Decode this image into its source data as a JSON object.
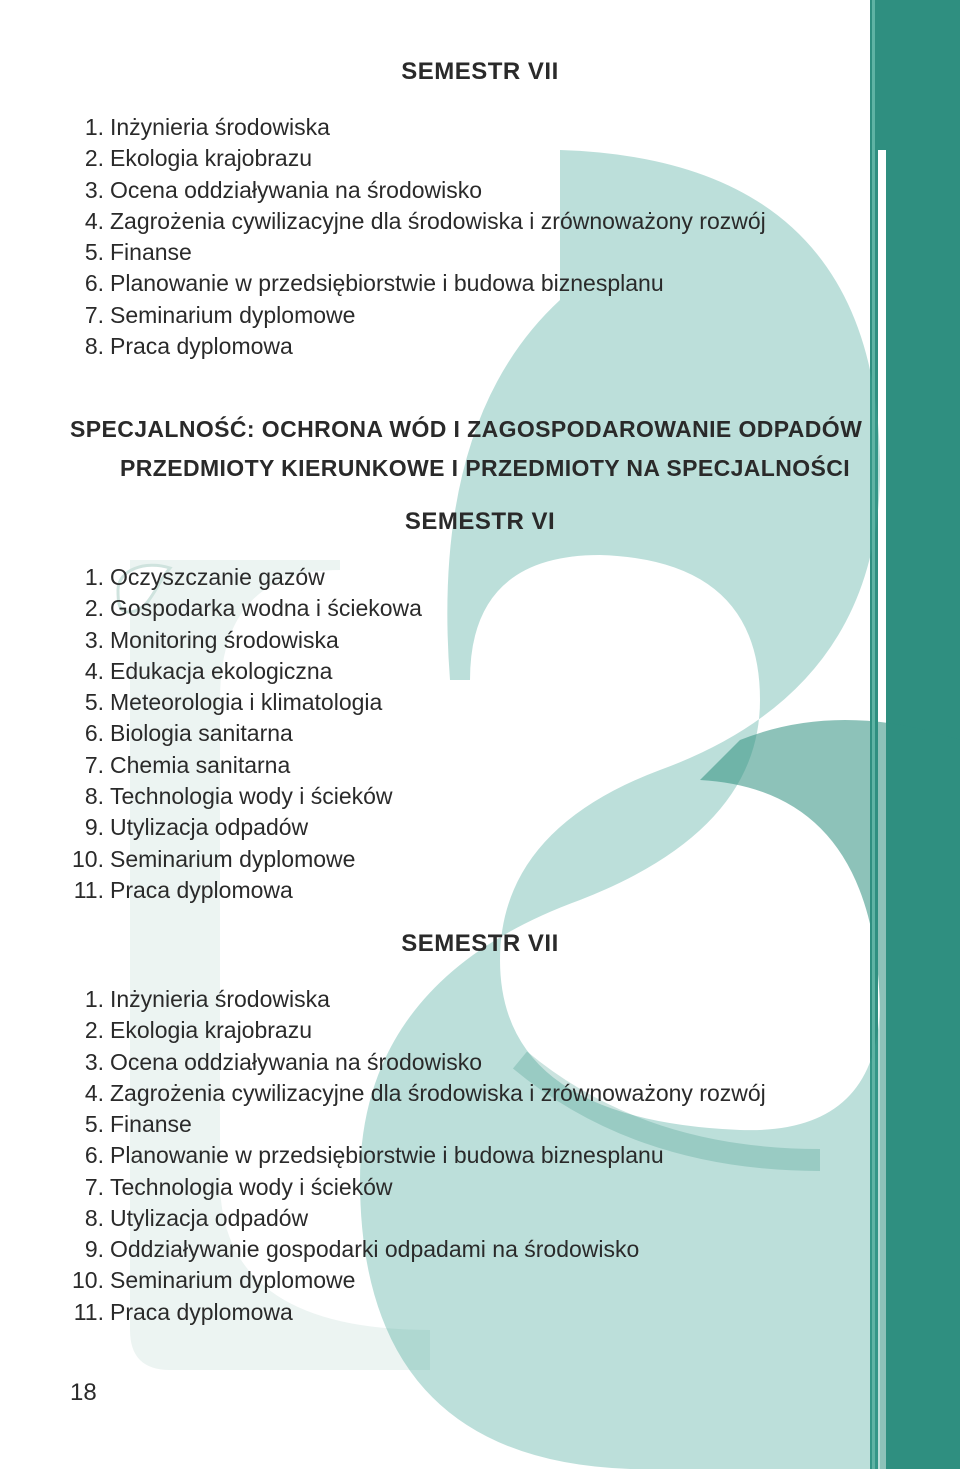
{
  "colors": {
    "text": "#2a2a2a",
    "background": "#ffffff",
    "teal_dark": "#2f8f80",
    "teal_light": "#d9ece8",
    "teal_mid": "#3fa394",
    "accent_line": "#bcd9d3"
  },
  "pageNumber": "18",
  "sections": [
    {
      "type": "heading_center",
      "text": "SEMESTR VII"
    },
    {
      "type": "list",
      "items": [
        "Inżynieria środowiska",
        "Ekologia krajobrazu",
        "Ocena oddziaływania na środowisko",
        "Zagrożenia cywilizacyjne dla środowiska i zrównoważony rozwój",
        "Finanse",
        "Planowanie w przedsiębiorstwie i budowa biznesplanu",
        "Seminarium dyplomowe",
        "Praca dyplomowa"
      ]
    },
    {
      "type": "heading_left",
      "text": "SPECJALNOŚĆ: OCHRONA WÓD I ZAGOSPODAROWANIE ODPADÓW"
    },
    {
      "type": "heading_indent",
      "text": "PRZEDMIOTY KIERUNKOWE I PRZEDMIOTY NA SPECJALNOŚCI"
    },
    {
      "type": "heading_center",
      "text": "SEMESTR VI"
    },
    {
      "type": "list",
      "items": [
        "Oczyszczanie gazów",
        "Gospodarka wodna i ściekowa",
        "Monitoring środowiska",
        "Edukacja ekologiczna",
        "Meteorologia i klimatologia",
        "Biologia sanitarna",
        "Chemia sanitarna",
        "Technologia wody i ścieków",
        "Utylizacja odpadów",
        "Seminarium dyplomowe",
        "Praca dyplomowa"
      ]
    },
    {
      "type": "heading_center",
      "text": "SEMESTR VII"
    },
    {
      "type": "list",
      "items": [
        "Inżynieria środowiska",
        "Ekologia krajobrazu",
        "Ocena oddziaływania na środowisko",
        "Zagrożenia cywilizacyjne dla środowiska i zrównoważony rozwój",
        "Finanse",
        "Planowanie w przedsiębiorstwie i budowa biznesplanu",
        "Technologia wody i ścieków",
        "Utylizacja odpadów",
        "Oddziaływanie gospodarki odpadami na środowisko",
        "Seminarium dyplomowe",
        "Praca dyplomowa"
      ]
    }
  ]
}
